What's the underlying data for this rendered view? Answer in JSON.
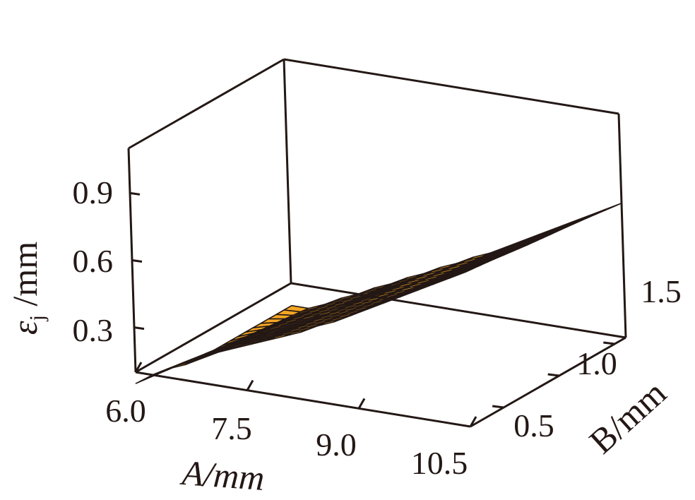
{
  "chart_data": {
    "type": "surface",
    "title": "",
    "xlabel": "A/mm",
    "ylabel": "B/mm",
    "zlabel": "ε_j /mm",
    "zlabel_main": "ε",
    "zlabel_sub": "j",
    "zlabel_unit": " /mm",
    "xlim": [
      6.0,
      10.5
    ],
    "ylim": [
      0.2,
      1.6
    ],
    "zlim": [
      0.1,
      1.1
    ],
    "x_ticks": [
      "6.0",
      "7.5",
      "9.0",
      "10.5"
    ],
    "y_ticks": [
      "0.5",
      "1.0",
      "1.5"
    ],
    "z_ticks": [
      "0.3",
      "0.6",
      "0.9"
    ],
    "surface_color": "#f5a623",
    "mesh_color": "#231815",
    "grid": false,
    "surface": {
      "x_range": [
        6.0,
        10.5
      ],
      "y_range": [
        0.2,
        1.6
      ],
      "x_steps": 20,
      "y_steps": 20,
      "z": [
        [
          0.05,
          0.1,
          0.14,
          0.17,
          0.21,
          0.25,
          0.28,
          0.31,
          0.34,
          0.37,
          0.4,
          0.44,
          0.47,
          0.51,
          0.55,
          0.59,
          0.63,
          0.67,
          0.71,
          0.75,
          0.79
        ],
        [
          0.0,
          0.04,
          0.08,
          0.12,
          0.15,
          0.19,
          0.22,
          0.25,
          0.29,
          0.32,
          0.35,
          0.39,
          0.42,
          0.46,
          0.5,
          0.54,
          0.58,
          0.62,
          0.66,
          0.7,
          0.75
        ],
        [
          0.0,
          0.0,
          0.03,
          0.07,
          0.1,
          0.14,
          0.17,
          0.21,
          0.24,
          0.28,
          0.31,
          0.35,
          0.38,
          0.42,
          0.46,
          0.5,
          0.54,
          0.58,
          0.62,
          0.66,
          0.7
        ]
      ]
    }
  }
}
